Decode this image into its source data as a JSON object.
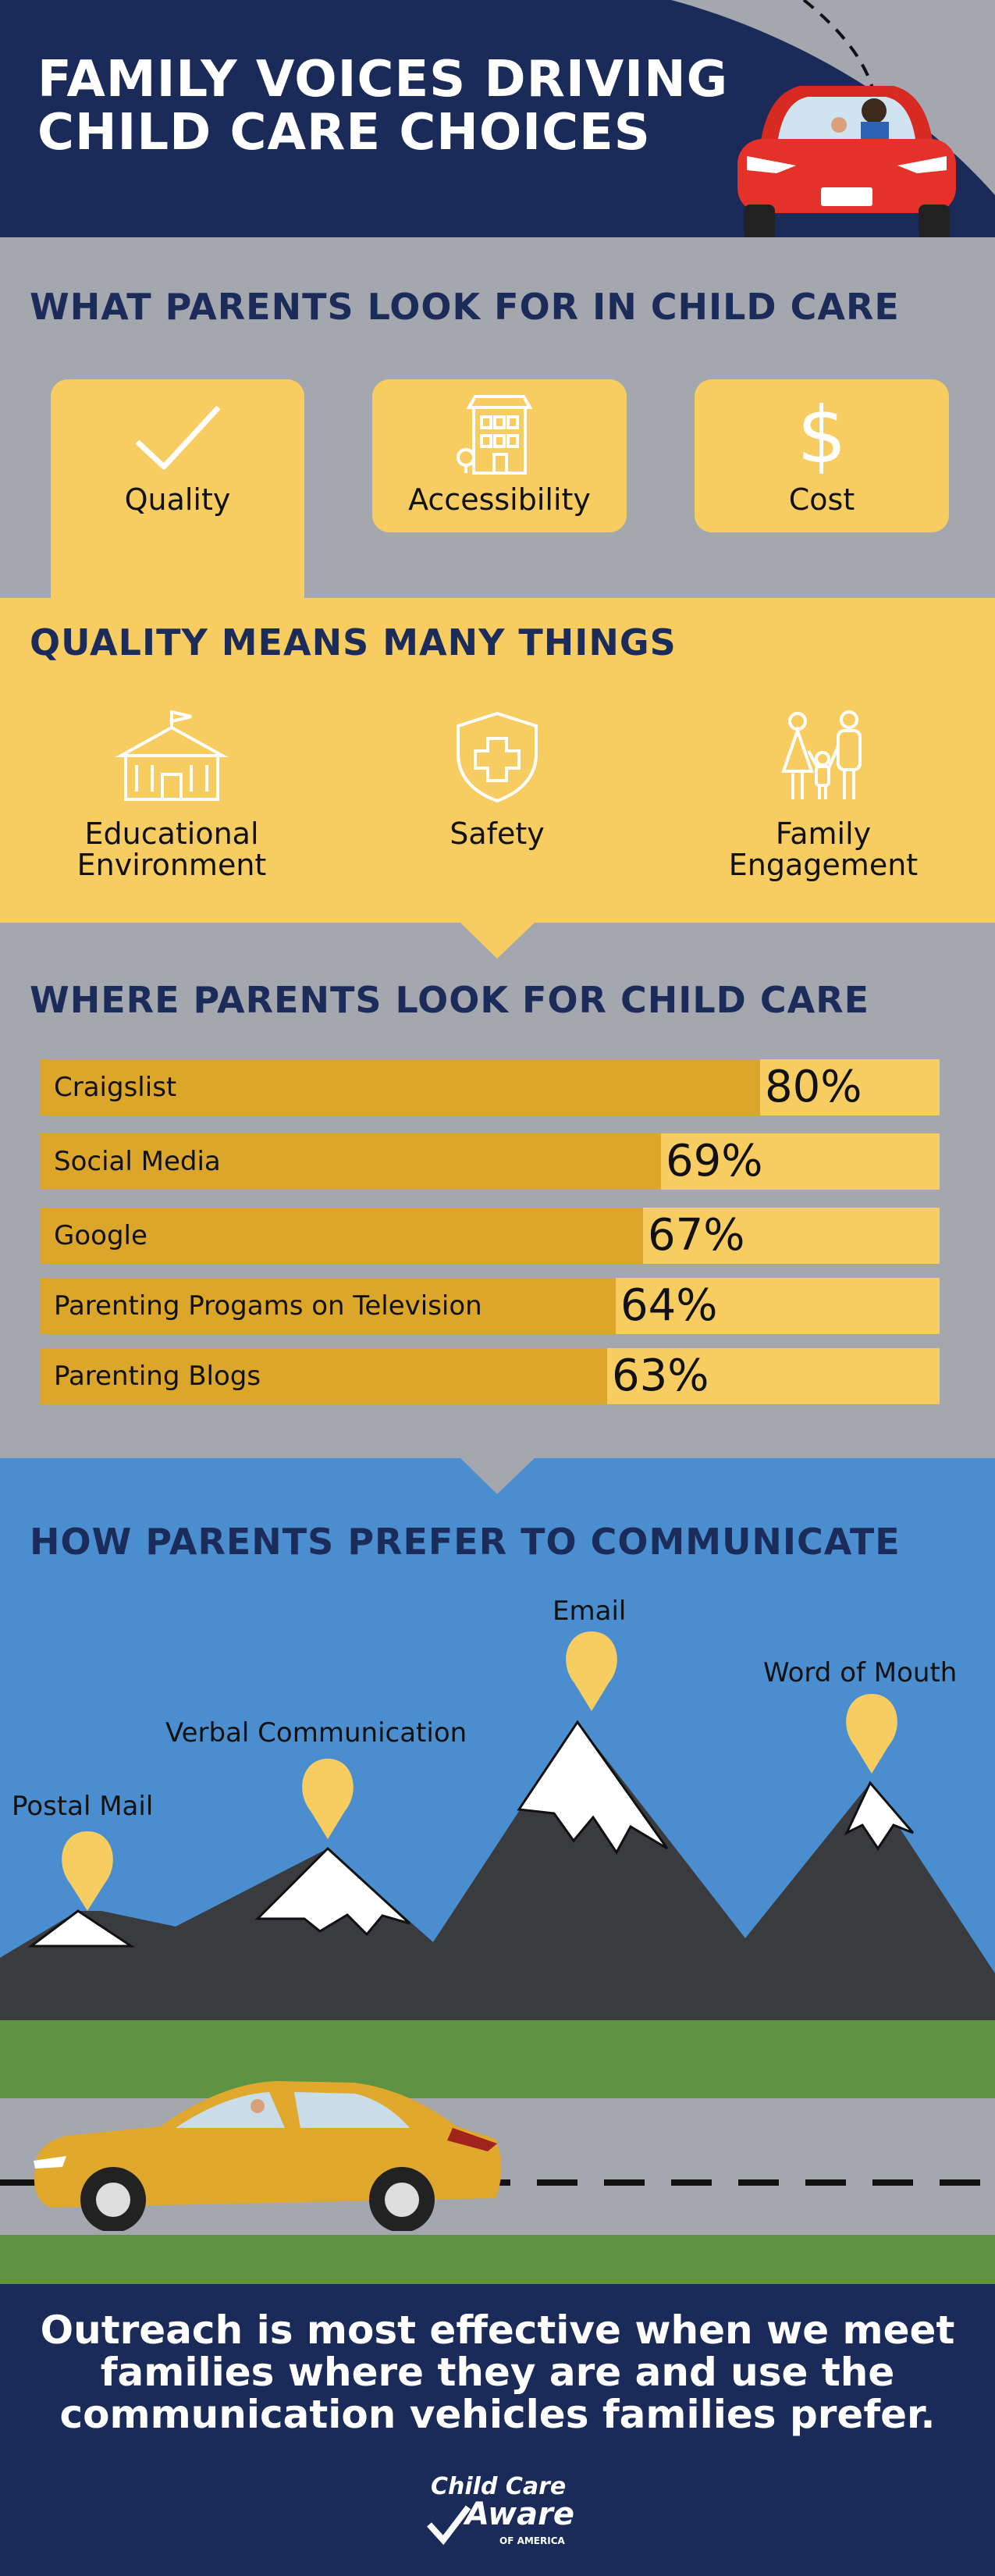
{
  "hero": {
    "title_line1": "FAMILY VOICES DRIVING",
    "title_line2": "CHILD CARE CHOICES"
  },
  "looks_for": {
    "title": "WHAT PARENTS LOOK FOR IN CHILD CARE",
    "cards": [
      {
        "label": "Quality",
        "icon": "checkmark-icon"
      },
      {
        "label": "Accessibility",
        "icon": "building-icon"
      },
      {
        "label": "Cost",
        "icon": "dollar-icon"
      }
    ]
  },
  "quality": {
    "title": "QUALITY MEANS MANY THINGS",
    "items": [
      {
        "line1": "Educational",
        "line2": "Environment",
        "icon": "school-icon"
      },
      {
        "line1": "Safety",
        "line2": "",
        "icon": "shield-icon"
      },
      {
        "line1": "Family",
        "line2": "Engagement",
        "icon": "family-icon"
      }
    ]
  },
  "where_look": {
    "title": "WHERE PARENTS LOOK FOR CHILD CARE"
  },
  "chart_data": {
    "type": "bar",
    "orientation": "horizontal",
    "categories": [
      "Craigslist",
      "Social Media",
      "Google",
      "Parenting Progams on Television",
      "Parenting Blogs"
    ],
    "values": [
      80,
      69,
      67,
      64,
      63
    ],
    "value_labels": [
      "80%",
      "69%",
      "67%",
      "64%",
      "63%"
    ],
    "xlim": [
      0,
      100
    ],
    "colors": {
      "fill": "#dba62a",
      "track": "#f7cd62"
    }
  },
  "communicate": {
    "title": "HOW PARENTS PREFER TO COMMUNICATE",
    "pins": [
      {
        "label": "Postal Mail",
        "rank": 4
      },
      {
        "label": "Verbal Communication",
        "rank": 3
      },
      {
        "label": "Email",
        "rank": 1
      },
      {
        "label": "Word of Mouth",
        "rank": 2
      }
    ]
  },
  "outro": {
    "line1": "Outreach is most effective when we meet",
    "line2": "families where they are and use the",
    "line3": "communication vehicles families prefer."
  },
  "logo": {
    "line1": "Child Care",
    "line2": "Aware",
    "line3": "OF AMERICA"
  },
  "colors": {
    "navy": "#1a2b59",
    "gray": "#a4a7ae",
    "yellow": "#f7cd62",
    "gold": "#dba62a",
    "sky": "#4b8ed0",
    "red": "#e4322b"
  }
}
